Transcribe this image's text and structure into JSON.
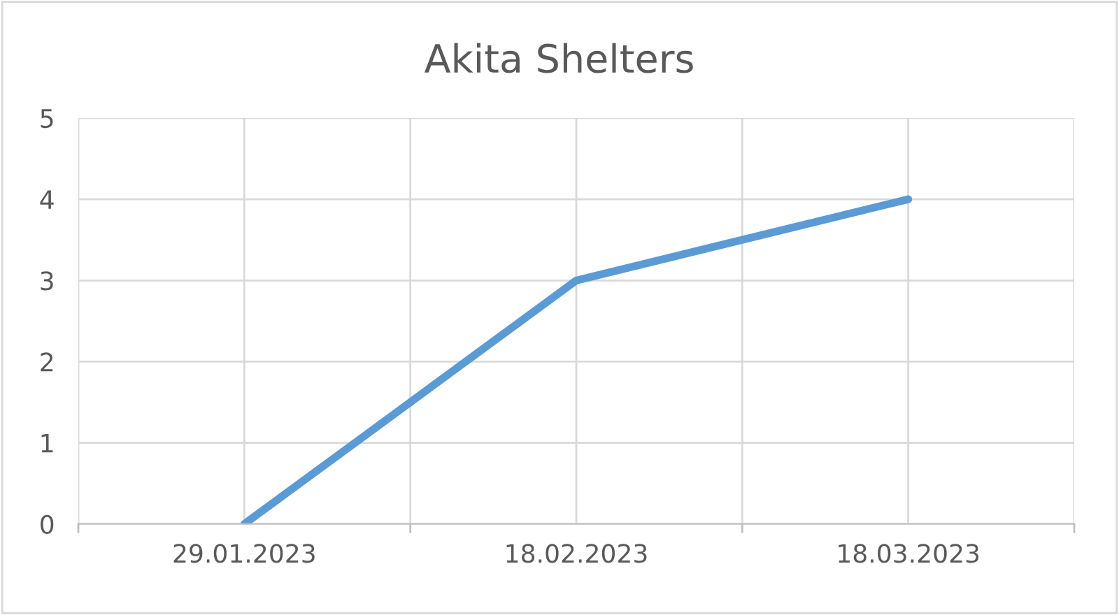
{
  "chart_data": {
    "type": "line",
    "title": "Akita Shelters",
    "categories": [
      "29.01.2023",
      "18.02.2023",
      "18.03.2023"
    ],
    "series": [
      {
        "color": "#5b9bd5",
        "values": [
          0,
          3,
          4
        ]
      }
    ],
    "ylim": [
      0,
      5
    ],
    "yticks": [
      0,
      1,
      2,
      3,
      4,
      5
    ],
    "grid": true,
    "marker": "none",
    "line_style": "solid"
  }
}
